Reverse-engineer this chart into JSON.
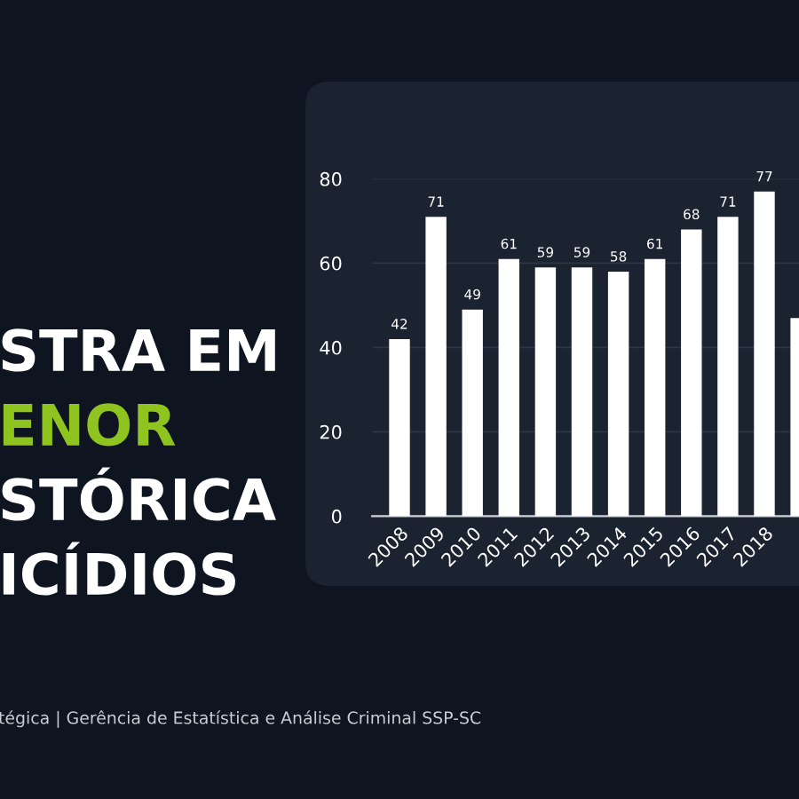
{
  "chart_data": {
    "type": "bar",
    "title": "STRA EM\nENOR\nSTÓRICA\nICÍDIOS",
    "annotations": [
      "tégica | Gerência de Estatística e Análise Criminal SSP-SC"
    ],
    "categories": [
      "2008",
      "2009",
      "2010",
      "2011",
      "2012",
      "2013",
      "2014",
      "2015",
      "2016",
      "2017",
      "2018",
      null
    ],
    "values": [
      42,
      71,
      49,
      61,
      59,
      59,
      58,
      61,
      68,
      71,
      77,
      47
    ],
    "color": "#ffffff",
    "ylim": [
      0,
      80
    ],
    "yticks": [
      0,
      20,
      40,
      60,
      80
    ],
    "grid": "y",
    "value_labels": [
      "42",
      "71",
      "49",
      "61",
      "59",
      "59",
      "58",
      "61",
      "68",
      "71",
      "77",
      null
    ]
  }
}
